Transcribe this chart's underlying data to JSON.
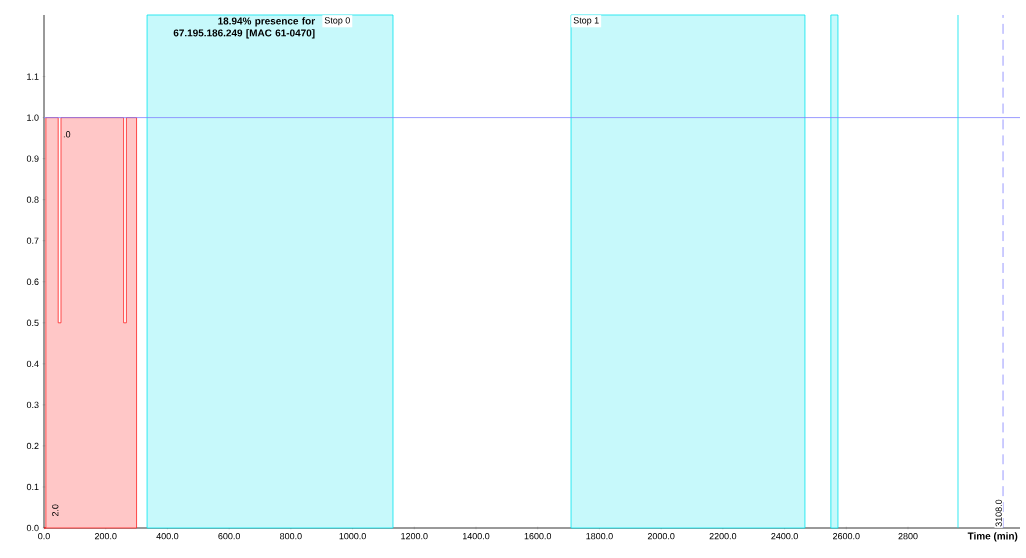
{
  "chart_data": {
    "type": "area",
    "title": "18.94% presence for 67.195.186.249 [MAC 61-0470]",
    "xlabel": "Time (min)",
    "x": [
      0,
      6,
      46,
      55,
      258,
      267,
      300
    ],
    "series": [
      {
        "color": "#ff2020",
        "values": [
          0,
          1,
          0.5,
          1,
          0.5,
          1,
          0
        ]
      }
    ],
    "xlim": [
      0,
      3163
    ],
    "ylim": [
      0,
      1.25
    ],
    "xticks": [
      {
        "value": 0,
        "label": "0.0"
      },
      {
        "value": 200,
        "label": "200.0"
      },
      {
        "value": 400,
        "label": "400.0"
      },
      {
        "value": 600,
        "label": "600.0"
      },
      {
        "value": 800,
        "label": "800.0"
      },
      {
        "value": 1000,
        "label": "1000.0"
      },
      {
        "value": 1200,
        "label": "1200.0"
      },
      {
        "value": 1400,
        "label": "1400.0"
      },
      {
        "value": 1600,
        "label": "1600.0"
      },
      {
        "value": 1800,
        "label": "1800.0"
      },
      {
        "value": 2000,
        "label": "2000.0"
      },
      {
        "value": 2200,
        "label": "2200.0"
      },
      {
        "value": 2400,
        "label": "2400.0"
      },
      {
        "value": 2600,
        "label": "2600.0"
      },
      {
        "value": 2800,
        "label": "2800"
      }
    ],
    "yticks": [
      {
        "value": 0,
        "label": "0.0"
      },
      {
        "value": 0.1,
        "label": "0.1"
      },
      {
        "value": 0.2,
        "label": "0.2"
      },
      {
        "value": 0.3,
        "label": "0.3"
      },
      {
        "value": 0.4,
        "label": "0.4"
      },
      {
        "value": 0.5,
        "label": "0.5"
      },
      {
        "value": 0.6,
        "label": "0.6"
      },
      {
        "value": 0.7,
        "label": "0.7"
      },
      {
        "value": 0.8,
        "label": "0.8"
      },
      {
        "value": 0.9,
        "label": "0.9"
      },
      {
        "value": 1.0,
        "label": "1.0"
      },
      {
        "value": 1.1,
        "label": "1.1"
      }
    ],
    "bands": [
      {
        "axis": "x",
        "from": 334,
        "to": 1131,
        "label": "Stop 0",
        "color": "#00e5ee"
      },
      {
        "axis": "x",
        "from": 1708,
        "to": 2466,
        "label": "Stop 1",
        "color": "#00e5ee"
      },
      {
        "axis": "x",
        "from": 2550,
        "to": 2573,
        "color": "#00e5ee"
      }
    ],
    "ref_lines": [
      {
        "axis": "y",
        "value": 1.0,
        "color": "#8080ff",
        "line_style": "solid"
      },
      {
        "axis": "x",
        "value": 2962,
        "color": "#00e5ee",
        "line_style": "solid"
      },
      {
        "axis": "x",
        "value": 3108,
        "label": "3108.0",
        "color": "#8080ff",
        "line_style": "dashed"
      }
    ],
    "annotations": [
      {
        "text": ".0",
        "x": 58,
        "y": 0.97
      },
      "2.0"
    ],
    "grid": false
  }
}
